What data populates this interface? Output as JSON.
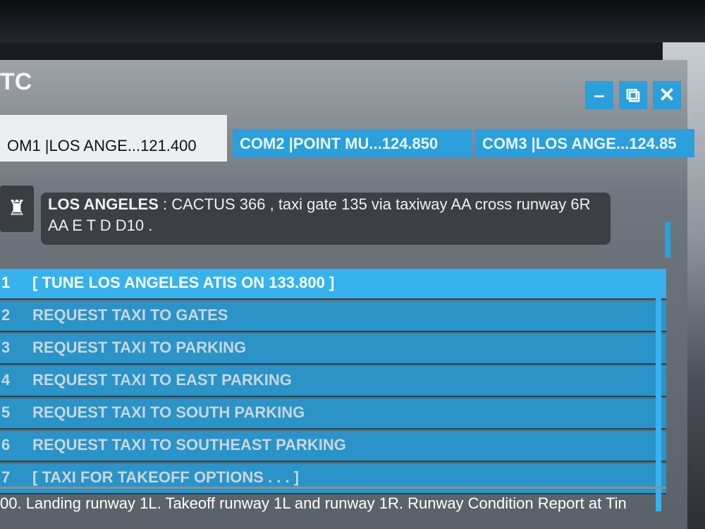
{
  "window": {
    "title": "TC"
  },
  "controls": {
    "minimize": "–",
    "popout": "⧉",
    "close": "✕"
  },
  "tabs": [
    {
      "label": "OM1 |LOS ANGE...121.400",
      "active": true
    },
    {
      "label": "COM2 |POINT MU...124.850",
      "active": false
    },
    {
      "label": "COM3 |LOS ANGE...124.85",
      "active": false
    }
  ],
  "message": {
    "speaker": "LOS ANGELES",
    "text": " : CACTUS 366 , taxi gate 135 via taxiway AA cross runway 6R AA E T D D10 .",
    "icon": "control-tower-icon"
  },
  "options": [
    {
      "n": "1",
      "label": "[ TUNE LOS ANGELES ATIS ON 133.800 ]",
      "selected": true
    },
    {
      "n": "2",
      "label": "REQUEST TAXI TO GATES"
    },
    {
      "n": "3",
      "label": "REQUEST TAXI TO PARKING"
    },
    {
      "n": "4",
      "label": "REQUEST TAXI TO EAST PARKING"
    },
    {
      "n": "5",
      "label": "REQUEST TAXI TO SOUTH PARKING"
    },
    {
      "n": "6",
      "label": "REQUEST TAXI TO SOUTHEAST PARKING"
    },
    {
      "n": "7",
      "label": "[ TAXI FOR TAKEOFF OPTIONS . . . ]"
    }
  ],
  "ticker": "00. Landing runway 1L. Takeoff runway 1L and runway 1R. Runway Condition Report at Tin",
  "colors": {
    "accent": "#2a9fdc",
    "selected": "#36b2ec"
  }
}
